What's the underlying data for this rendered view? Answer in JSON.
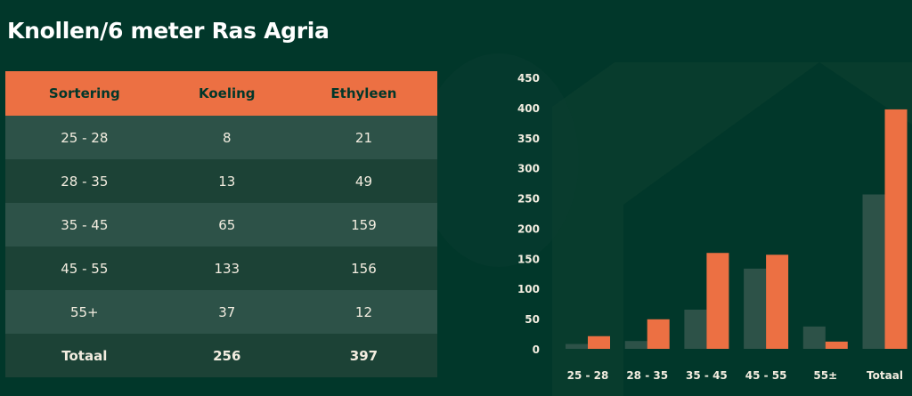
{
  "title": "Knollen/6 meter  Ras Agria",
  "table": {
    "headers": [
      "Sortering",
      "Koeling",
      "Ethyleen"
    ],
    "rows": [
      [
        "25 - 28",
        "8",
        "21"
      ],
      [
        "28 - 35",
        "13",
        "49"
      ],
      [
        "35 - 45",
        "65",
        "159"
      ],
      [
        "45 - 55",
        "133",
        "156"
      ],
      [
        "55+",
        "37",
        "12"
      ],
      [
        "Totaal",
        "256",
        "397"
      ]
    ]
  },
  "colors": {
    "background": "#01372a",
    "koeling": "#2d5248",
    "ethyleen": "#ec7043"
  },
  "chart_data": {
    "type": "bar",
    "categories": [
      "25 - 28",
      "28 - 35",
      "35 - 45",
      "45 - 55",
      "55±",
      "Totaal"
    ],
    "series": [
      {
        "values": [
          8,
          13,
          65,
          133,
          37,
          256
        ],
        "color": "#2d5248"
      },
      {
        "values": [
          21,
          49,
          159,
          156,
          12,
          397
        ],
        "color": "#ec7043"
      }
    ],
    "ylim": [
      0,
      450
    ],
    "yticks": [
      0,
      50,
      100,
      150,
      200,
      250,
      300,
      350,
      400,
      450
    ],
    "grid": false,
    "legend": "none"
  }
}
